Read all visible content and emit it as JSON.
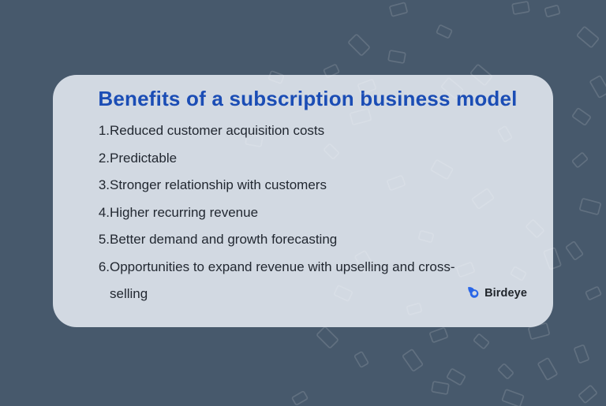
{
  "card": {
    "title": "Benefits of a subscription business model",
    "benefits": [
      {
        "number": "1.",
        "text": "Reduced customer acquisition costs"
      },
      {
        "number": "2.",
        "text": "Predictable"
      },
      {
        "number": "3.",
        "text": "Stronger relationship with customers"
      },
      {
        "number": "4.",
        "text": "Higher recurring revenue"
      },
      {
        "number": "5.",
        "text": "Better demand and growth forecasting"
      },
      {
        "number": "6.",
        "text": "Opportunities to expand revenue with upselling and cross-selling"
      }
    ]
  },
  "logo": {
    "name": "Birdeye",
    "icon": "birdeye-bird-icon"
  },
  "colors": {
    "background": "#47596C",
    "card_background": "#D2D9E2",
    "title_blue": "#1B4DB5",
    "body_text": "#222831",
    "logo_icon_blue": "#2966E8",
    "logo_text": "#20252B",
    "pattern_stroke": "#FFFFFF"
  }
}
